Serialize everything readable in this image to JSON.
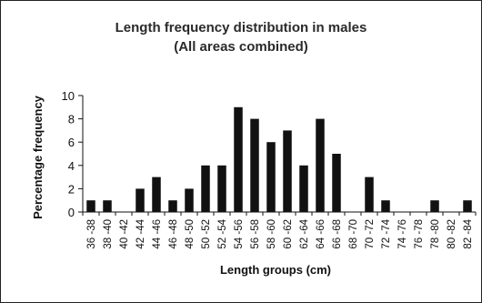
{
  "chart_data": {
    "type": "bar",
    "title": "Length frequency distribution in males",
    "subtitle": "(All areas combined)",
    "xlabel": "Length groups (cm)",
    "ylabel": "Percentage frequency",
    "ylim": [
      0,
      10
    ],
    "yticks": [
      0,
      2,
      4,
      6,
      8,
      10
    ],
    "grid": false,
    "legend": "none",
    "bar_color": "#111111",
    "categories": [
      "36 -38",
      "38 -40",
      "40 -42",
      "42 -44",
      "44 -46",
      "46 -48",
      "48 -50",
      "50 -52",
      "52 -54",
      "54 -56",
      "56 -58",
      "58 -60",
      "60 -62",
      "62 -64",
      "64 -66",
      "66 -68",
      "68 -70",
      "70 -72",
      "72 -74",
      "74 -76",
      "76 -78",
      "78 -80",
      "80 -82",
      "82 -84"
    ],
    "values": [
      1,
      1,
      0,
      2,
      3,
      1,
      2,
      4,
      4,
      9,
      8,
      6,
      7,
      4,
      8,
      5,
      0,
      3,
      1,
      0,
      0,
      1,
      0,
      1
    ]
  }
}
